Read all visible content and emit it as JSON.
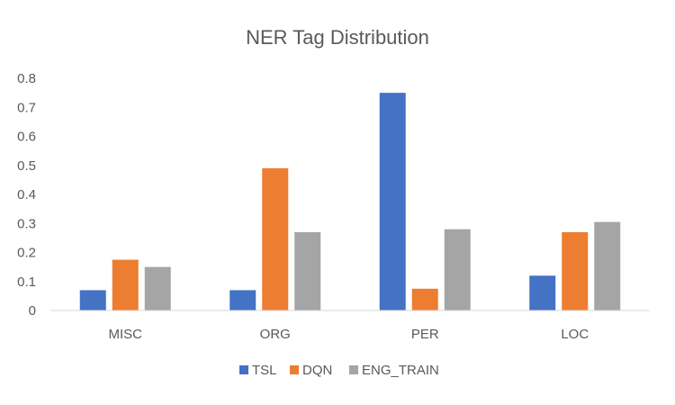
{
  "chart_data": {
    "type": "bar",
    "title": "NER Tag Distribution",
    "xlabel": "",
    "ylabel": "",
    "categories": [
      "MISC",
      "ORG",
      "PER",
      "LOC"
    ],
    "series": [
      {
        "name": "TSL",
        "color": "#4472C4",
        "values": [
          0.07,
          0.07,
          0.75,
          0.12
        ]
      },
      {
        "name": "DQN",
        "color": "#ED7D31",
        "values": [
          0.175,
          0.49,
          0.075,
          0.27
        ]
      },
      {
        "name": "ENG_TRAIN",
        "color": "#A5A5A5",
        "values": [
          0.15,
          0.27,
          0.28,
          0.305
        ]
      }
    ],
    "ylim": [
      0,
      0.8
    ],
    "yticks": [
      "0",
      "0.1",
      "0.2",
      "0.3",
      "0.4",
      "0.5",
      "0.6",
      "0.7",
      "0.8"
    ],
    "grid": false,
    "legend_position": "bottom"
  }
}
